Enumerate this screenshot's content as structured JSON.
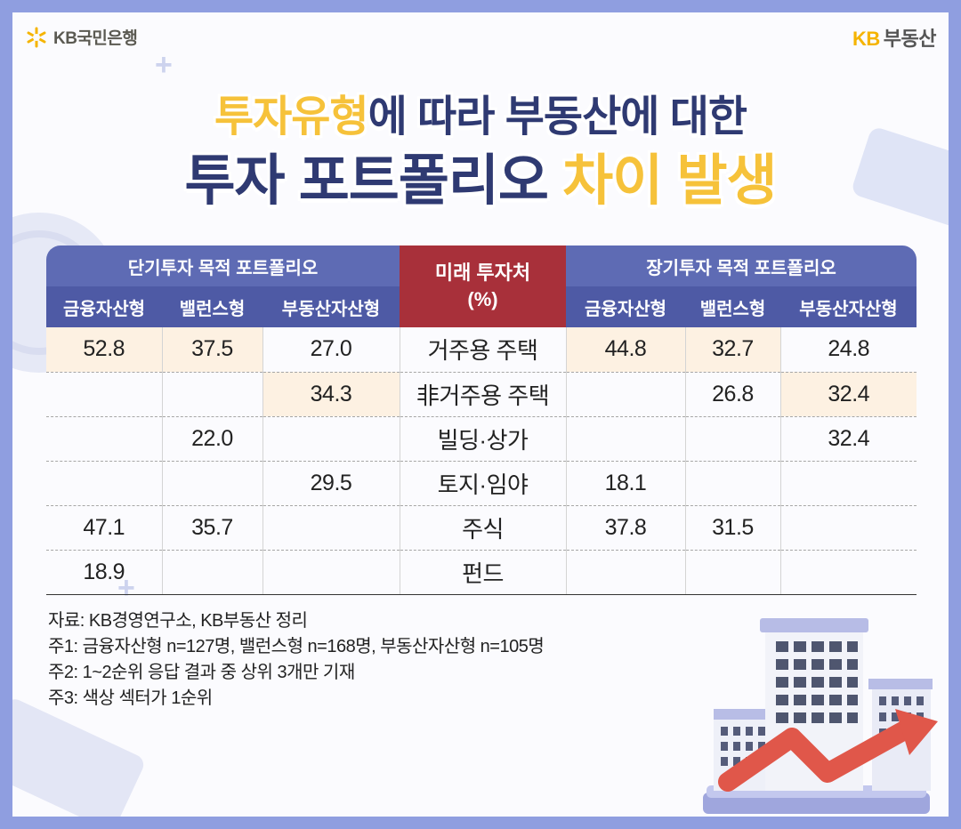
{
  "brand": {
    "left_logo": "KB국민은행",
    "right_logo_kb": "KB",
    "right_logo_text": "부동산"
  },
  "title": {
    "line1_highlight": "투자유형",
    "line1_rest": "에 따라 부동산에 대한",
    "line2_part1": "투자 포트폴리오 ",
    "line2_highlight": "차이 발생"
  },
  "table": {
    "group_left": "단기투자 목적 포트폴리오",
    "center_header_line1": "미래 투자처",
    "center_header_line2": "(%)",
    "group_right": "장기투자 목적 포트폴리오",
    "sub_headers": [
      "금융자산형",
      "밸런스형",
      "부동산자산형"
    ],
    "rows": [
      {
        "label": "거주용 주택",
        "left": [
          "52.8",
          "37.5",
          "27.0"
        ],
        "right": [
          "44.8",
          "32.7",
          "24.8"
        ]
      },
      {
        "label": "非거주용 주택",
        "left": [
          "",
          "",
          "34.3"
        ],
        "right": [
          "",
          "26.8",
          "32.4"
        ]
      },
      {
        "label": "빌딩·상가",
        "left": [
          "",
          "22.0",
          ""
        ],
        "right": [
          "",
          "",
          "32.4"
        ]
      },
      {
        "label": "토지·임야",
        "left": [
          "",
          "",
          "29.5"
        ],
        "right": [
          "18.1",
          "",
          ""
        ]
      },
      {
        "label": "주식",
        "left": [
          "47.1",
          "35.7",
          ""
        ],
        "right": [
          "37.8",
          "31.5",
          ""
        ]
      },
      {
        "label": "펀드",
        "left": [
          "18.9",
          "",
          ""
        ],
        "right": [
          "",
          "",
          ""
        ]
      }
    ]
  },
  "notes": [
    "자료: KB경영연구소, KB부동산 정리",
    "주1: 금융자산형 n=127명, 밸런스형 n=168명, 부동산자산형 n=105명",
    "주2: 1~2순위 응답 결과 중 상위 3개만 기재",
    "주3: 색상 섹터가 1순위"
  ],
  "colors": {
    "header_blue": "#5e6bb4",
    "header_red": "#a8303a",
    "highlight_cell": "#fdf1e2",
    "title_navy": "#2f3a72",
    "title_yellow": "#f6c23a"
  }
}
